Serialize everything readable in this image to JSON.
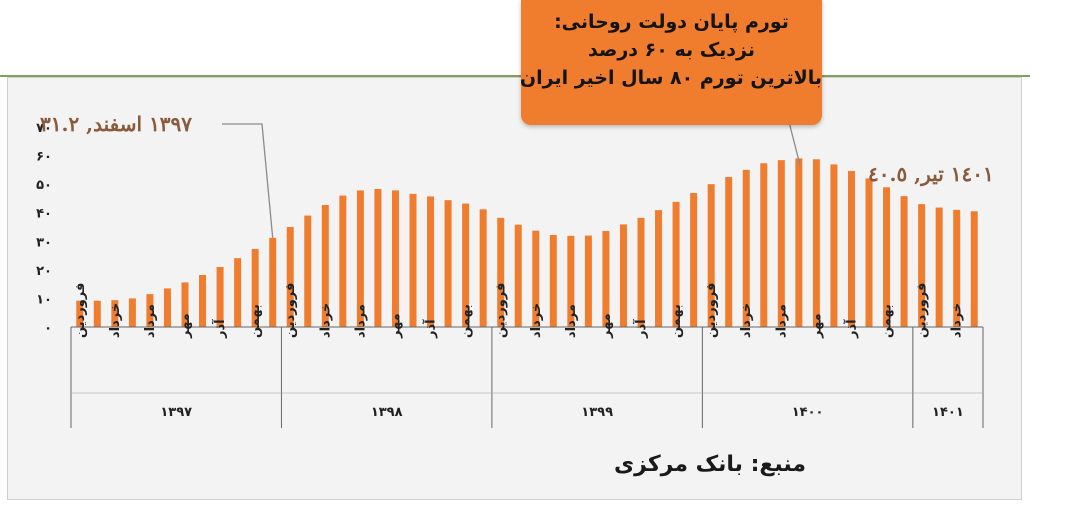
{
  "callout": {
    "line1": "تورم پایان دولت روحانی:",
    "line2": "نزدیک به ۶۰ درصد",
    "line3": "بالاترین تورم ۸۰ سال اخیر ایران"
  },
  "source_label": "منبع: بانک مرکزی",
  "colors": {
    "bar": "#f07c2e",
    "callout": "#f07c2e",
    "frame_bg": "#f3f3f3",
    "annotation": "#8a5a3c"
  },
  "chart_data": {
    "type": "bar",
    "ylim": [
      0,
      70
    ],
    "y_ticks": [
      {
        "value": 0,
        "label": "۰"
      },
      {
        "value": 10,
        "label": "۱۰"
      },
      {
        "value": 20,
        "label": "۲۰"
      },
      {
        "value": 30,
        "label": "۳۰"
      },
      {
        "value": 40,
        "label": "۴۰"
      },
      {
        "value": 50,
        "label": "۵۰"
      },
      {
        "value": 60,
        "label": "۶۰"
      },
      {
        "value": 70,
        "label": "۷۰"
      }
    ],
    "grid": false,
    "month_labels": [
      "فروردین",
      "خرداد",
      "مرداد",
      "مهر",
      "آذر",
      "بهمن"
    ],
    "years": [
      {
        "label": "۱۳۹۷",
        "months": 12
      },
      {
        "label": "۱۳۹۸",
        "months": 12
      },
      {
        "label": "۱۳۹۹",
        "months": 12
      },
      {
        "label": "۱۴۰۰",
        "months": 12
      },
      {
        "label": "۱۴۰۱",
        "months": 4
      }
    ],
    "values": [
      9.2,
      9.2,
      9.4,
      10.0,
      11.5,
      13.5,
      15.6,
      18.2,
      21.0,
      24.1,
      27.3,
      31.2,
      35.0,
      39.0,
      42.7,
      46.0,
      47.8,
      48.3,
      47.8,
      46.6,
      45.7,
      44.4,
      43.2,
      41.2,
      38.2,
      35.8,
      33.7,
      32.2,
      31.9,
      32.0,
      33.6,
      35.9,
      38.2,
      40.9,
      43.8,
      46.9,
      50.0,
      52.5,
      55.0,
      57.3,
      58.4,
      59.0,
      58.7,
      56.9,
      54.6,
      52.0,
      48.9,
      45.8,
      43.0,
      41.8,
      41.0,
      40.5
    ],
    "annotations": [
      {
        "text": "۱۳۹۷ اسفند, ۳۱.۲",
        "bar_index": 11
      },
      {
        "text": "١٤٠١ تیر, ٤٠.٥",
        "bar_index": 51
      }
    ]
  }
}
